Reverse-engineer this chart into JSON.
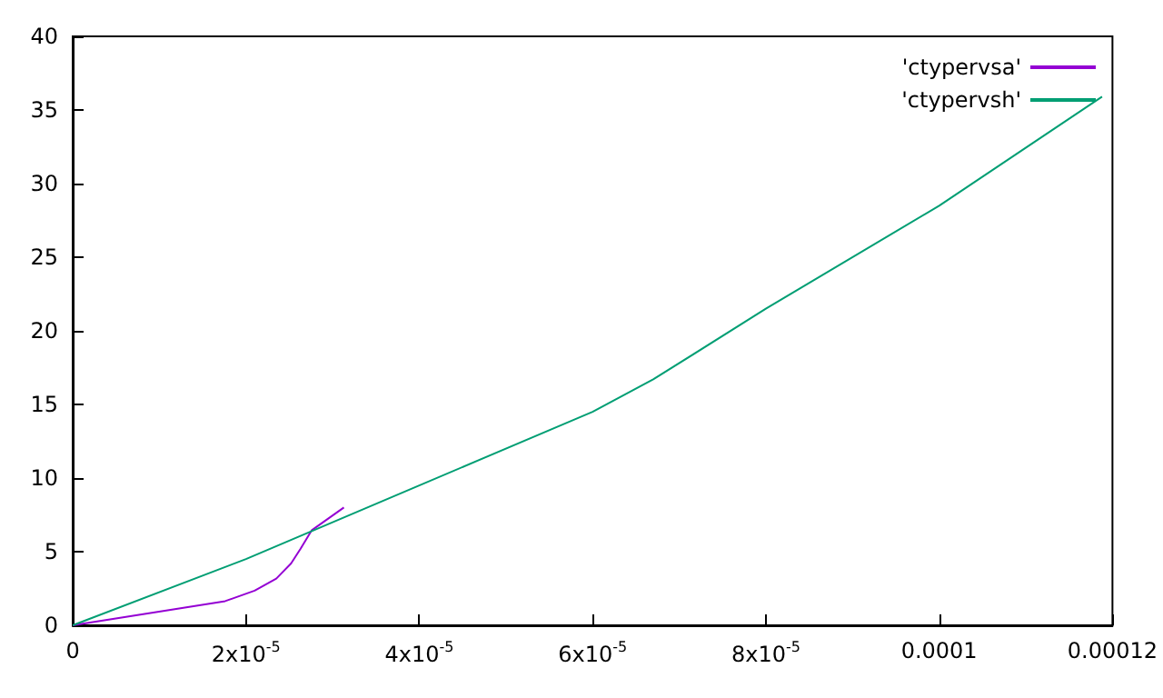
{
  "chart_data": {
    "type": "line",
    "series": [
      {
        "name": "'ctypervsa'",
        "color": "#9400d3",
        "x": [
          0,
          1.76e-05,
          2.1e-05,
          2.35e-05,
          2.52e-05,
          2.63e-05,
          2.76e-05,
          3.13e-05
        ],
        "values": [
          0,
          1.64,
          2.35,
          3.17,
          4.2,
          5.2,
          6.46,
          8.0
        ]
      },
      {
        "name": "'ctypervsh'",
        "color": "#009e73",
        "x": [
          0,
          2e-05,
          4e-05,
          6e-05,
          6.7e-05,
          8e-05,
          0.0001,
          0.0001188
        ],
        "values": [
          0,
          4.5,
          9.5,
          14.5,
          16.7,
          21.5,
          28.5,
          35.9
        ]
      }
    ],
    "xlim": [
      0,
      0.00012
    ],
    "xticks": [
      0,
      {
        "value": 2e-05,
        "label": "2x10$^{-5}$"
      },
      {
        "value": 4e-05,
        "label": "4x10$^{-5}$"
      },
      {
        "value": 6e-05,
        "label": "6x10$^{-5}$"
      },
      {
        "value": 8e-05,
        "label": "8x10$^{-5}$"
      },
      0.0001,
      0.00012
    ],
    "ylim": [
      0,
      40
    ],
    "yticks": [
      0,
      5,
      10,
      15,
      20,
      25,
      30,
      35,
      40
    ],
    "grid": false,
    "legend": "top right",
    "marker": "none",
    "line_style": "solid"
  }
}
